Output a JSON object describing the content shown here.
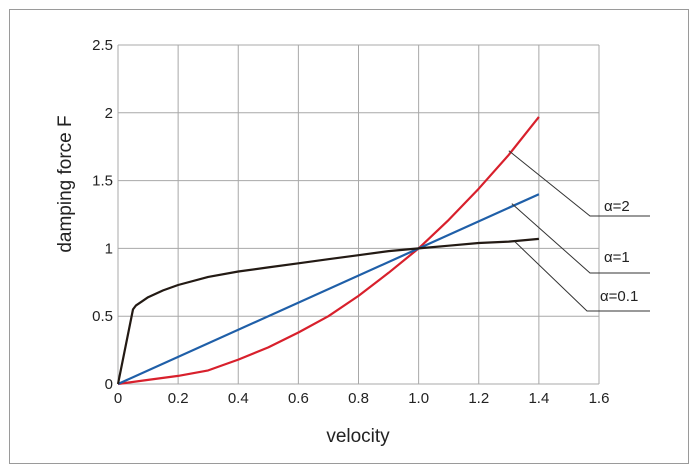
{
  "colors": {
    "alpha_2": "#d8202c",
    "alpha_1": "#1f5fa8",
    "alpha_01": "#231a14",
    "grid": "#a8a8a8",
    "leader": "#333333"
  },
  "chart_data": {
    "type": "line",
    "title": "",
    "xlabel": "velocity",
    "ylabel": "damping force F",
    "xlim": [
      0,
      1.6
    ],
    "ylim": [
      0,
      2.5
    ],
    "grid": true,
    "xticks": [
      0,
      0.2,
      0.4,
      0.6,
      0.8,
      1.0,
      1.2,
      1.4,
      1.6
    ],
    "xtick_labels": [
      "0",
      "0.2",
      "0.4",
      "0.6",
      "0.8",
      "1.0",
      "1.2",
      "1.4",
      "1.6"
    ],
    "yticks": [
      0,
      0.5,
      1,
      1.5,
      2,
      2.5
    ],
    "ytick_labels": [
      "0",
      "0.5",
      "1",
      "1.5",
      "2",
      "2.5"
    ],
    "series": [
      {
        "key": "alpha_2",
        "name": "α=2",
        "x": [
          0,
          0.1,
          0.2,
          0.3,
          0.35,
          0.4,
          0.5,
          0.6,
          0.7,
          0.8,
          0.9,
          1.0,
          1.1,
          1.2,
          1.3,
          1.4
        ],
        "y": [
          0,
          0.03,
          0.06,
          0.1,
          0.14,
          0.18,
          0.27,
          0.38,
          0.5,
          0.65,
          0.82,
          1.0,
          1.21,
          1.44,
          1.69,
          1.97
        ]
      },
      {
        "key": "alpha_1",
        "name": "α=1",
        "x": [
          0,
          1.4
        ],
        "y": [
          0,
          1.4
        ]
      },
      {
        "key": "alpha_01",
        "name": "α=0.1",
        "x": [
          0,
          0.05,
          0.06,
          0.08,
          0.1,
          0.15,
          0.2,
          0.3,
          0.4,
          0.5,
          0.6,
          0.7,
          0.8,
          0.9,
          1.0,
          1.1,
          1.2,
          1.3,
          1.4
        ],
        "y": [
          0,
          0.55,
          0.58,
          0.61,
          0.64,
          0.69,
          0.73,
          0.79,
          0.83,
          0.86,
          0.89,
          0.92,
          0.95,
          0.98,
          1.0,
          1.02,
          1.04,
          1.05,
          1.07
        ]
      }
    ],
    "annotations": [
      {
        "text": "α=2",
        "series": "alpha_2",
        "x": 1.3,
        "y": 1.72
      },
      {
        "text": "α=1",
        "series": "alpha_1",
        "x": 1.31,
        "y": 1.33
      },
      {
        "text": "α=0.1",
        "series": "alpha_01",
        "x": 1.32,
        "y": 1.05
      }
    ]
  }
}
